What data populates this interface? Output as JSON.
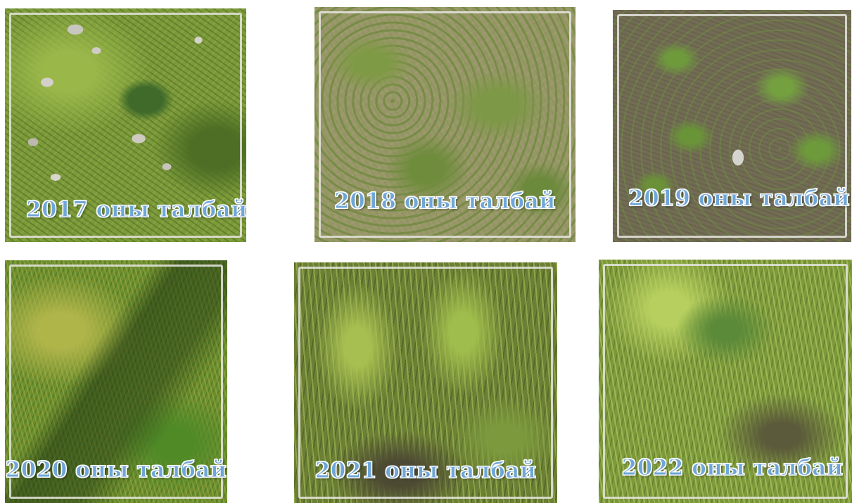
{
  "plots": [
    {
      "caption": "2017 оны талбай"
    },
    {
      "caption": "2018 оны талбай"
    },
    {
      "caption": "2019 оны талбай"
    },
    {
      "caption": "2020 оны талбай"
    },
    {
      "caption": "2021 оны талбай"
    },
    {
      "caption": "2022 оны талбай"
    }
  ]
}
